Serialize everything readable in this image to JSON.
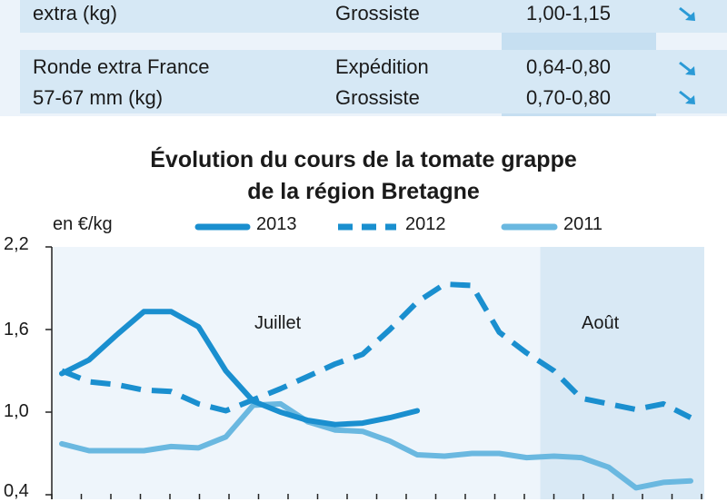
{
  "table": {
    "rows": [
      {
        "product": [
          "extra (kg)"
        ],
        "stage": [
          "Grossiste"
        ],
        "price": [
          "1,00-1,15"
        ],
        "trend": [
          "down"
        ]
      },
      {
        "product": [
          "Ronde extra France",
          "57-67 mm (kg)"
        ],
        "stage": [
          "Expédition",
          "Grossiste"
        ],
        "price": [
          "0,64-0,80",
          "0,70-0,80"
        ],
        "trend": [
          "down",
          "down"
        ]
      }
    ]
  },
  "chart_data": {
    "type": "line",
    "title": "Évolution du cours de la tomate grappe",
    "title_line2": "de la région Bretagne",
    "ylabel": "en €/kg",
    "ylim": [
      0.4,
      2.2
    ],
    "yticks": [
      "2,2",
      "1,6",
      "1,0",
      "0,4"
    ],
    "ytick_values": [
      2.2,
      1.6,
      1.0,
      0.4
    ],
    "x_range": [
      0,
      23
    ],
    "grid": false,
    "legend_position": "top",
    "period_labels": [
      "Juillet",
      "Août"
    ],
    "period_boundary": 17.5,
    "series": [
      {
        "name": "2013",
        "style": "solid",
        "color": "#1a8fcf",
        "x": [
          0,
          1,
          2,
          3,
          4,
          5,
          6,
          7,
          8,
          9,
          10,
          11,
          12,
          13
        ],
        "values": [
          1.28,
          1.38,
          1.56,
          1.73,
          1.73,
          1.62,
          1.3,
          1.08,
          1.0,
          0.94,
          0.91,
          0.92,
          0.96,
          1.01
        ]
      },
      {
        "name": "2012",
        "style": "dashed",
        "color": "#1a8fcf",
        "x": [
          0,
          1,
          2,
          3,
          4,
          5,
          6,
          7,
          8,
          9,
          10,
          11,
          12,
          13,
          14,
          15,
          16,
          17,
          18,
          19,
          20,
          21,
          22,
          23
        ],
        "values": [
          1.3,
          1.22,
          1.2,
          1.16,
          1.15,
          1.06,
          1.01,
          1.09,
          1.17,
          1.26,
          1.35,
          1.42,
          1.6,
          1.8,
          1.93,
          1.92,
          1.58,
          1.43,
          1.3,
          1.1,
          1.06,
          1.02,
          1.06,
          0.96
        ]
      },
      {
        "name": "2011",
        "style": "solid",
        "color": "#6ab8e0",
        "x": [
          0,
          1,
          2,
          3,
          4,
          5,
          6,
          7,
          8,
          9,
          10,
          11,
          12,
          13,
          14,
          15,
          16,
          17,
          18,
          19,
          20,
          21,
          22,
          23
        ],
        "values": [
          0.77,
          0.72,
          0.72,
          0.72,
          0.75,
          0.74,
          0.82,
          1.05,
          1.06,
          0.93,
          0.87,
          0.86,
          0.79,
          0.69,
          0.68,
          0.7,
          0.7,
          0.67,
          0.68,
          0.67,
          0.6,
          0.45,
          0.49,
          0.5
        ]
      }
    ]
  }
}
